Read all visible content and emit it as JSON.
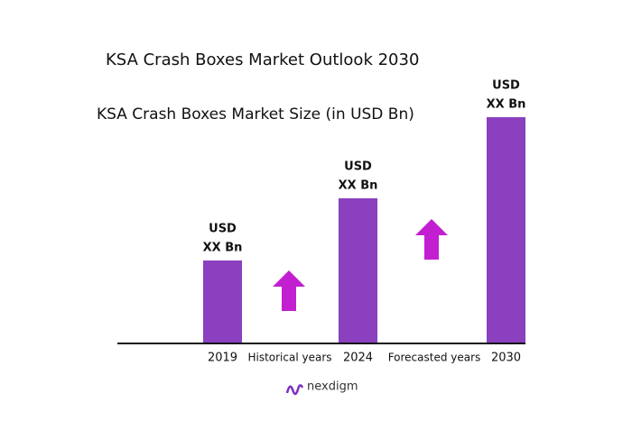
{
  "chart_data": {
    "type": "bar",
    "title": "KSA Crash Boxes Market Outlook 2030",
    "subtitle": "KSA Crash Boxes Market  Size (in USD Bn)",
    "categories": [
      "2019",
      "2024",
      "2030"
    ],
    "values": [
      91,
      160,
      250
    ],
    "bar_labels": [
      [
        "USD",
        "XX Bn"
      ],
      [
        "USD",
        "XX Bn"
      ],
      [
        "USD",
        "XX Bn"
      ]
    ],
    "period_labels": [
      "Historical years",
      "Forecasted years"
    ],
    "color": "#8a40bf",
    "brand": "nexdigm"
  }
}
